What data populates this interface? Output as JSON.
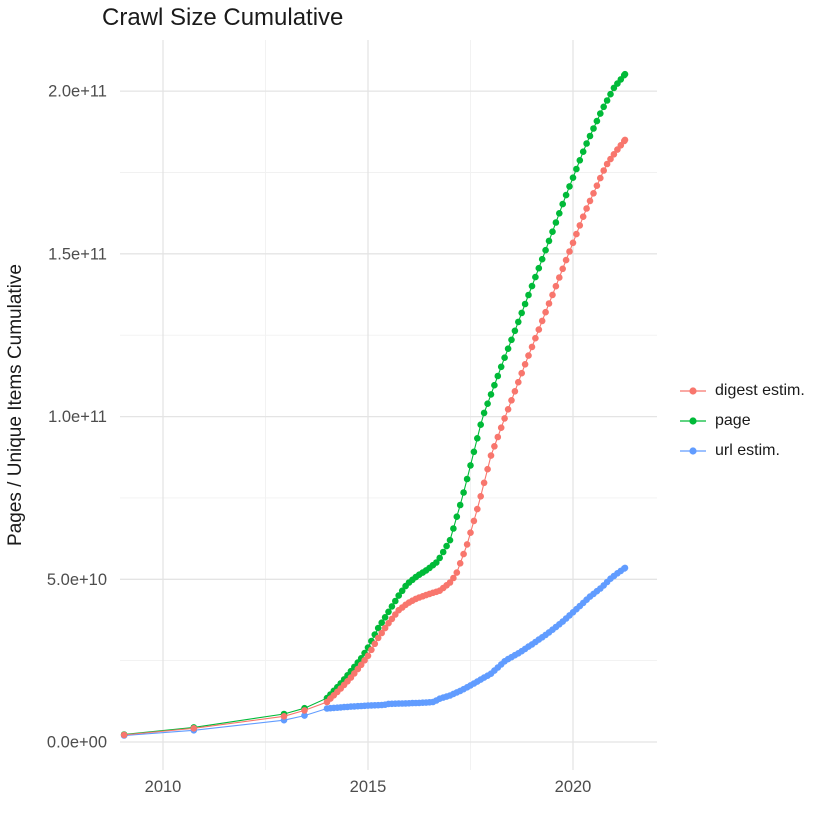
{
  "page": {
    "background": "#FFFFFF"
  },
  "chart_data": {
    "type": "line",
    "title": "Crawl Size Cumulative",
    "ylabel": "Pages / Unique Items Cumulative",
    "xlabel": "",
    "legend_position": "right",
    "grid": true,
    "values_unit": "1e9 (billions of pages / unique items)",
    "colors": {
      "grid_major": "#E4E4E4",
      "grid_minor": "#F1F1F1",
      "tick_text": "#4D4D4D",
      "digest": "#F8766D",
      "page": "#00BA38",
      "url": "#619CFF"
    },
    "x_axis": {
      "range": [
        2008.95,
        2022.05
      ],
      "ticks": [
        {
          "v": 2010,
          "label": "2010"
        },
        {
          "v": 2015,
          "label": "2015"
        },
        {
          "v": 2020,
          "label": "2020"
        }
      ],
      "minor": [
        2012.5,
        2017.5
      ]
    },
    "y_axis": {
      "range": [
        -8.6,
        215.7
      ],
      "ticks": [
        {
          "v": 0,
          "label": "0.0e+00"
        },
        {
          "v": 50,
          "label": "5.0e+10"
        },
        {
          "v": 100,
          "label": "1.0e+11"
        },
        {
          "v": 150,
          "label": "1.5e+11"
        },
        {
          "v": 200,
          "label": "2.0e+11"
        }
      ],
      "minor": [
        25,
        75,
        125,
        175
      ]
    },
    "sample_step_years": 0.08333,
    "draw_order": [
      2,
      1,
      0
    ],
    "series": [
      {
        "name": "digest estim.",
        "color": "#F8766D",
        "points_early": [
          [
            2009.05,
            2.2
          ],
          [
            2010.75,
            4.2
          ],
          [
            2012.95,
            7.9
          ],
          [
            2013.45,
            9.7
          ]
        ],
        "anchors_monthly": [
          [
            2014.0,
            12.3
          ],
          [
            2014.3,
            16
          ],
          [
            2014.6,
            20
          ],
          [
            2014.85,
            24
          ],
          [
            2015.0,
            26.5
          ],
          [
            2015.25,
            32
          ],
          [
            2015.5,
            36.5
          ],
          [
            2015.75,
            40.5
          ],
          [
            2015.95,
            42.5
          ],
          [
            2016.2,
            44.2
          ],
          [
            2016.5,
            45.5
          ],
          [
            2016.75,
            46.5
          ],
          [
            2017.0,
            49
          ],
          [
            2017.15,
            51.5
          ],
          [
            2017.4,
            60
          ],
          [
            2017.7,
            73
          ],
          [
            2018.0,
            88
          ],
          [
            2018.35,
            100
          ],
          [
            2018.8,
            115
          ],
          [
            2019.3,
            131
          ],
          [
            2019.8,
            147
          ],
          [
            2020.3,
            163
          ],
          [
            2020.8,
            177
          ],
          [
            2021.05,
            181.5
          ],
          [
            2021.27,
            185
          ]
        ]
      },
      {
        "name": "page",
        "color": "#00BA38",
        "points_early": [
          [
            2009.05,
            2.3
          ],
          [
            2010.75,
            4.5
          ],
          [
            2012.95,
            8.6
          ],
          [
            2013.45,
            10.4
          ]
        ],
        "anchors_monthly": [
          [
            2014.0,
            13.5
          ],
          [
            2014.3,
            17.5
          ],
          [
            2014.6,
            22
          ],
          [
            2014.85,
            26
          ],
          [
            2015.0,
            29
          ],
          [
            2015.25,
            35
          ],
          [
            2015.5,
            40
          ],
          [
            2015.75,
            45
          ],
          [
            2015.95,
            48.5
          ],
          [
            2016.2,
            51
          ],
          [
            2016.45,
            53
          ],
          [
            2016.7,
            55.5
          ],
          [
            2017.0,
            62
          ],
          [
            2017.3,
            75
          ],
          [
            2017.6,
            90
          ],
          [
            2017.8,
            100
          ],
          [
            2018.3,
            117
          ],
          [
            2018.8,
            133.5
          ],
          [
            2019.3,
            150
          ],
          [
            2019.8,
            167
          ],
          [
            2020.3,
            183
          ],
          [
            2020.7,
            194
          ],
          [
            2021.0,
            201
          ],
          [
            2021.27,
            205.2
          ]
        ]
      },
      {
        "name": "url estim.",
        "color": "#619CFF",
        "points_early": [
          [
            2009.05,
            2.0
          ],
          [
            2010.75,
            3.6
          ],
          [
            2012.95,
            6.7
          ],
          [
            2013.45,
            8.1
          ]
        ],
        "anchors_monthly": [
          [
            2014.0,
            10.3
          ],
          [
            2014.5,
            10.8
          ],
          [
            2015.0,
            11.2
          ],
          [
            2015.4,
            11.4
          ],
          [
            2015.5,
            11.7
          ],
          [
            2016.0,
            11.9
          ],
          [
            2016.4,
            12.1
          ],
          [
            2016.6,
            12.3
          ],
          [
            2016.75,
            13.3
          ],
          [
            2017.0,
            14.3
          ],
          [
            2017.3,
            16
          ],
          [
            2017.7,
            18.8
          ],
          [
            2018.0,
            21
          ],
          [
            2018.35,
            25
          ],
          [
            2018.7,
            27.5
          ],
          [
            2019.0,
            30
          ],
          [
            2019.4,
            33.5
          ],
          [
            2019.75,
            37
          ],
          [
            2020.1,
            41
          ],
          [
            2020.4,
            44.5
          ],
          [
            2020.7,
            47.5
          ],
          [
            2020.9,
            50
          ],
          [
            2021.1,
            52
          ],
          [
            2021.27,
            53.5
          ]
        ]
      }
    ]
  }
}
